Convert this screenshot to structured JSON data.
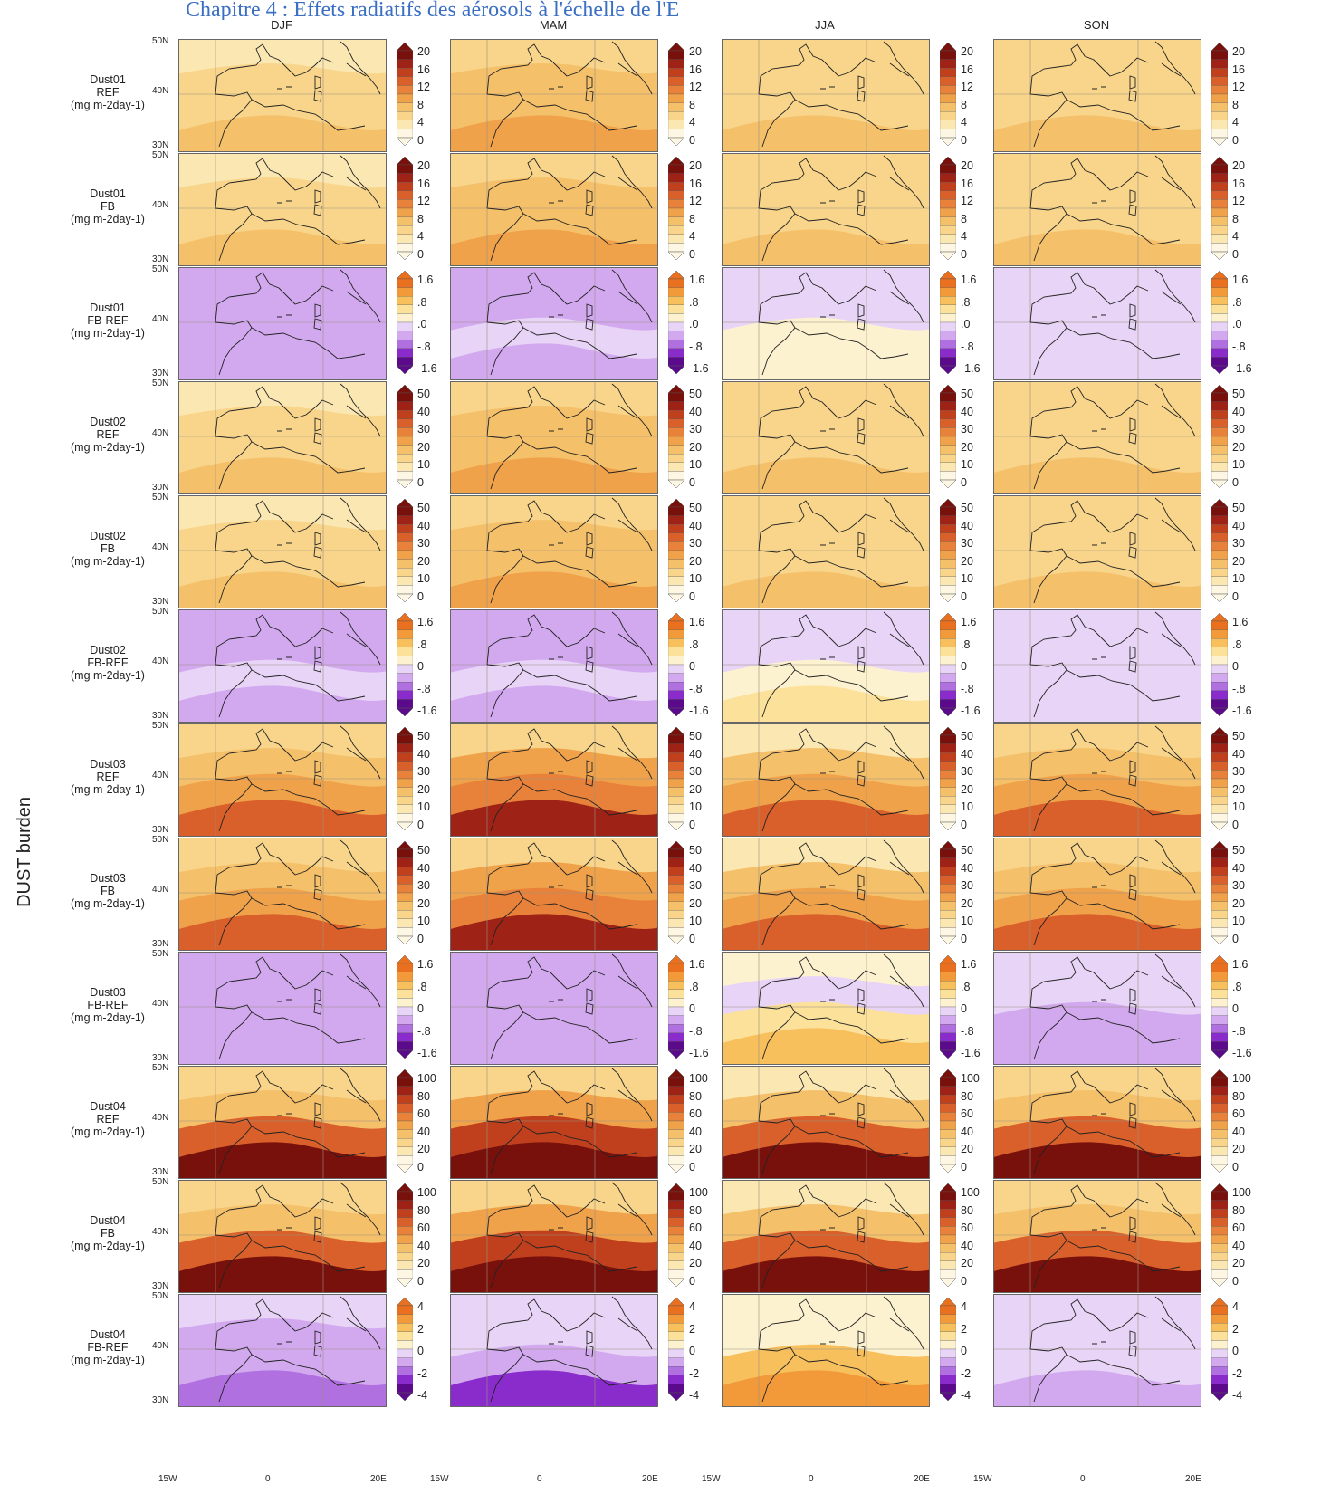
{
  "header_partial": "Chapitre 4 : Effets radiatifs des aérosols à l'échelle de l'E",
  "y_axis_label": "DUST burden",
  "seasons": [
    "DJF",
    "MAM",
    "JJA",
    "SON"
  ],
  "lon_labels": [
    "15W",
    "0",
    "20E"
  ],
  "lat_labels": [
    "50N",
    "40N",
    "30N"
  ],
  "colors": {
    "warm": [
      "#fdf6e3",
      "#fbe7b2",
      "#f8d58a",
      "#f5c06a",
      "#f0a24a",
      "#e8823a",
      "#d9602a",
      "#c0401e",
      "#9e2316",
      "#78100c"
    ],
    "diff": [
      "#5a0a8a",
      "#8a2ccc",
      "#b070e0",
      "#d2a9ef",
      "#e8d4f6",
      "#fdf2d0",
      "#fbe19a",
      "#f8c05c",
      "#f29a3a",
      "#e8701e"
    ]
  },
  "rows": [
    {
      "species": "Dust01",
      "exp": "REF",
      "unit": "(mg m-2day-1)",
      "cbar_type": "abs",
      "ticks": [
        "20",
        "16",
        "12",
        "8",
        "4",
        "0"
      ],
      "field": [
        [
          1,
          2,
          2,
          2
        ],
        [
          2,
          3,
          2,
          2
        ],
        [
          2,
          3,
          2,
          2
        ],
        [
          3,
          4,
          3,
          3
        ]
      ]
    },
    {
      "species": "Dust01",
      "exp": "FB",
      "unit": "(mg m-2day-1)",
      "cbar_type": "abs",
      "ticks": [
        "20",
        "16",
        "12",
        "8",
        "4",
        "0"
      ],
      "field": [
        [
          1,
          2,
          2,
          2
        ],
        [
          2,
          3,
          2,
          2
        ],
        [
          2,
          3,
          2,
          2
        ],
        [
          3,
          4,
          3,
          3
        ]
      ]
    },
    {
      "species": "Dust01",
      "exp": "FB-REF",
      "unit": "(mg m-2day-1)",
      "cbar_type": "diff",
      "ticks": [
        "1.6",
        ".8",
        ".0",
        "-.8",
        "-1.6"
      ],
      "field": [
        [
          3,
          3,
          4,
          4
        ],
        [
          3,
          3,
          4,
          4
        ],
        [
          3,
          4,
          5,
          4
        ],
        [
          3,
          3,
          5,
          4
        ]
      ]
    },
    {
      "species": "Dust02",
      "exp": "REF",
      "unit": "(mg m-2day-1)",
      "cbar_type": "abs",
      "ticks": [
        "50",
        "40",
        "30",
        "20",
        "10",
        "0"
      ],
      "field": [
        [
          1,
          2,
          2,
          2
        ],
        [
          2,
          3,
          2,
          2
        ],
        [
          2,
          3,
          2,
          2
        ],
        [
          3,
          4,
          3,
          3
        ]
      ]
    },
    {
      "species": "Dust02",
      "exp": "FB",
      "unit": "(mg m-2day-1)",
      "cbar_type": "abs",
      "ticks": [
        "50",
        "40",
        "30",
        "20",
        "10",
        "0"
      ],
      "field": [
        [
          1,
          2,
          2,
          2
        ],
        [
          2,
          3,
          2,
          2
        ],
        [
          2,
          3,
          2,
          2
        ],
        [
          3,
          4,
          3,
          3
        ]
      ]
    },
    {
      "species": "Dust02",
      "exp": "FB-REF",
      "unit": "(mg m-2day-1)",
      "cbar_type": "diff",
      "ticks": [
        "1.6",
        ".8",
        "0",
        "-.8",
        "-1.6"
      ],
      "field": [
        [
          3,
          3,
          4,
          4
        ],
        [
          3,
          3,
          4,
          4
        ],
        [
          4,
          4,
          5,
          4
        ],
        [
          3,
          3,
          6,
          4
        ]
      ]
    },
    {
      "species": "Dust03",
      "exp": "REF",
      "unit": "(mg m-2day-1)",
      "cbar_type": "abs",
      "ticks": [
        "50",
        "40",
        "30",
        "20",
        "10",
        "0"
      ],
      "field": [
        [
          2,
          2,
          1,
          2
        ],
        [
          3,
          4,
          3,
          3
        ],
        [
          4,
          5,
          4,
          4
        ],
        [
          6,
          8,
          6,
          6
        ]
      ]
    },
    {
      "species": "Dust03",
      "exp": "FB",
      "unit": "(mg m-2day-1)",
      "cbar_type": "abs",
      "ticks": [
        "50",
        "40",
        "30",
        "20",
        "10",
        "0"
      ],
      "field": [
        [
          2,
          2,
          1,
          2
        ],
        [
          3,
          4,
          3,
          3
        ],
        [
          4,
          5,
          4,
          4
        ],
        [
          6,
          8,
          6,
          6
        ]
      ]
    },
    {
      "species": "Dust03",
      "exp": "FB-REF",
      "unit": "(mg m-2day-1)",
      "cbar_type": "diff",
      "ticks": [
        "1.6",
        ".8",
        "0",
        "-.8",
        "-1.6"
      ],
      "field": [
        [
          3,
          3,
          5,
          4
        ],
        [
          3,
          3,
          4,
          4
        ],
        [
          3,
          3,
          6,
          3
        ],
        [
          3,
          3,
          7,
          3
        ]
      ]
    },
    {
      "species": "Dust04",
      "exp": "REF",
      "unit": "(mg m-2day-1)",
      "cbar_type": "abs",
      "ticks": [
        "100",
        "80",
        "60",
        "40",
        "20",
        "0"
      ],
      "field": [
        [
          2,
          2,
          1,
          2
        ],
        [
          3,
          4,
          3,
          3
        ],
        [
          6,
          7,
          6,
          6
        ],
        [
          9,
          9,
          9,
          9
        ]
      ]
    },
    {
      "species": "Dust04",
      "exp": "FB",
      "unit": "(mg m-2day-1)",
      "cbar_type": "abs",
      "ticks": [
        "100",
        "80",
        "60",
        "40",
        "20",
        "0"
      ],
      "field": [
        [
          2,
          2,
          1,
          2
        ],
        [
          3,
          4,
          3,
          3
        ],
        [
          6,
          7,
          6,
          6
        ],
        [
          9,
          9,
          9,
          9
        ]
      ]
    },
    {
      "species": "Dust04",
      "exp": "FB-REF",
      "unit": "(mg m-2day-1)",
      "cbar_type": "diff",
      "ticks": [
        "4",
        "2",
        "0",
        "-2",
        "-4"
      ],
      "field": [
        [
          4,
          4,
          5,
          4
        ],
        [
          3,
          4,
          5,
          4
        ],
        [
          3,
          3,
          7,
          4
        ],
        [
          2,
          1,
          8,
          3
        ]
      ]
    }
  ]
}
